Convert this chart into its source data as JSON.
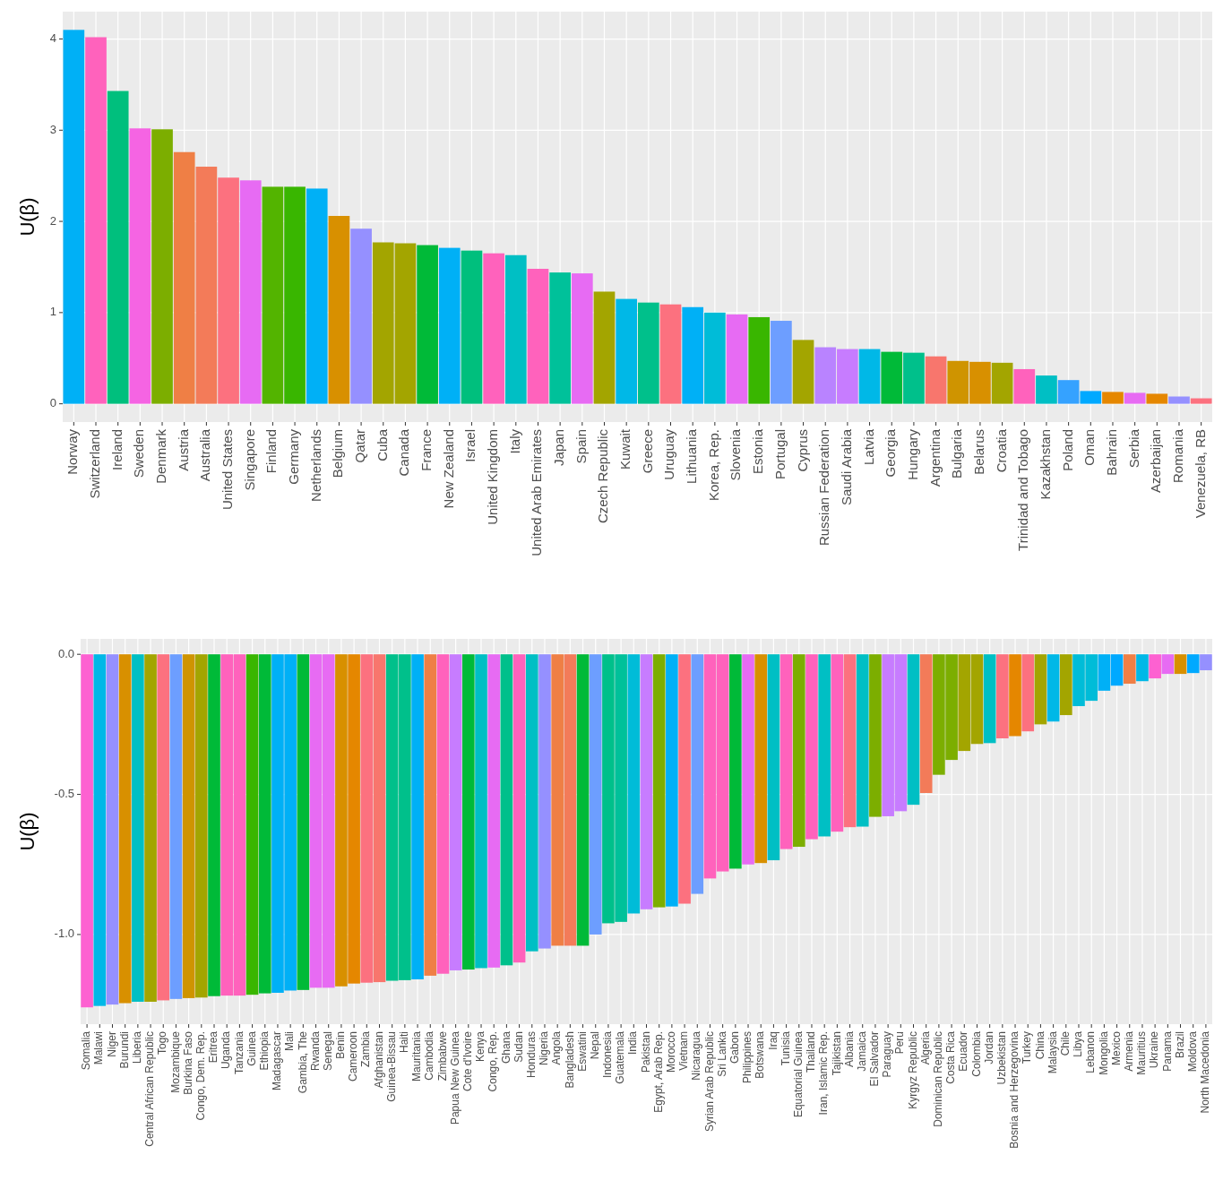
{
  "chart_data": [
    {
      "type": "bar",
      "ylabel": "U(β)",
      "categories": [
        "Norway",
        "Switzerland",
        "Ireland",
        "Sweden",
        "Denmark",
        "Austria",
        "Australia",
        "United States",
        "Singapore",
        "Finland",
        "Germany",
        "Netherlands",
        "Belgium",
        "Qatar",
        "Cuba",
        "Canada",
        "France",
        "New Zealand",
        "Israel",
        "United Kingdom",
        "Italy",
        "United Arab Emirates",
        "Japan",
        "Spain",
        "Czech Republic",
        "Kuwait",
        "Greece",
        "Uruguay",
        "Lithuania",
        "Korea, Rep.",
        "Slovenia",
        "Estonia",
        "Portugal",
        "Cyprus",
        "Russian Federation",
        "Saudi Arabia",
        "Latvia",
        "Georgia",
        "Hungary",
        "Argentina",
        "Bulgaria",
        "Belarus",
        "Croatia",
        "Trinidad and Tobago",
        "Kazakhstan",
        "Poland",
        "Oman",
        "Bahrain",
        "Serbia",
        "Azerbaijan",
        "Romania",
        "Venezuela, RB"
      ],
      "values": [
        4.1,
        4.02,
        3.43,
        3.02,
        3.01,
        2.76,
        2.6,
        2.48,
        2.45,
        2.38,
        2.38,
        2.36,
        2.06,
        1.92,
        1.77,
        1.76,
        1.74,
        1.71,
        1.68,
        1.65,
        1.63,
        1.48,
        1.44,
        1.43,
        1.23,
        1.15,
        1.11,
        1.09,
        1.06,
        1.0,
        0.98,
        0.95,
        0.91,
        0.7,
        0.62,
        0.6,
        0.6,
        0.57,
        0.56,
        0.52,
        0.47,
        0.46,
        0.45,
        0.38,
        0.31,
        0.26,
        0.14,
        0.13,
        0.12,
        0.11,
        0.08,
        0.06
      ],
      "colors": [
        "#00b0f6",
        "#ff62bc",
        "#00bf7d",
        "#f564e3",
        "#7cae00",
        "#ef7f45",
        "#f37b59",
        "#fc717f",
        "#e76bf3",
        "#53b400",
        "#39b600",
        "#00b0f6",
        "#d89000",
        "#9590ff",
        "#a3a500",
        "#a3a500",
        "#00ba38",
        "#00b0f6",
        "#00bf7d",
        "#ff62bc",
        "#00bfc4",
        "#ff62bc",
        "#00c19a",
        "#e76bf3",
        "#a3a500",
        "#00b8e7",
        "#00c08b",
        "#fc717f",
        "#00b0f6",
        "#00bcd8",
        "#e76bf3",
        "#39b600",
        "#6d9eff",
        "#a3a500",
        "#b983ff",
        "#c77cff",
        "#00b8e7",
        "#00ba38",
        "#00c08b",
        "#f8766d",
        "#cf9400",
        "#d89000",
        "#a3a500",
        "#ff62bc",
        "#00bfc4",
        "#35a2ff",
        "#00a9ff",
        "#e58700",
        "#e76bf3",
        "#e58700",
        "#9590ff",
        "#fc717f"
      ],
      "ylim": [
        -0.2,
        4.3
      ],
      "yticks": [
        0,
        1,
        2,
        3,
        4
      ],
      "grid": true
    },
    {
      "type": "bar",
      "ylabel": "U(β)",
      "categories": [
        "Somalia",
        "Malawi",
        "Niger",
        "Burundi",
        "Liberia",
        "Central African Republic",
        "Togo",
        "Mozambique",
        "Burkina Faso",
        "Congo, Dem. Rep.",
        "Eritrea",
        "Uganda",
        "Tanzania",
        "Guinea",
        "Ethiopia",
        "Madagascar",
        "Mali",
        "Gambia, The",
        "Rwanda",
        "Senegal",
        "Benin",
        "Cameroon",
        "Zambia",
        "Afghanistan",
        "Guinea-Bissau",
        "Haiti",
        "Mauritania",
        "Cambodia",
        "Zimbabwe",
        "Papua New Guinea",
        "Cote d'Ivoire",
        "Kenya",
        "Congo, Rep.",
        "Ghana",
        "Sudan",
        "Honduras",
        "Nigeria",
        "Angola",
        "Bangladesh",
        "Eswatini",
        "Nepal",
        "Indonesia",
        "Guatemala",
        "India",
        "Pakistan",
        "Egypt, Arab Rep.",
        "Morocco",
        "Vietnam",
        "Nicaragua",
        "Syrian Arab Republic",
        "Sri Lanka",
        "Gabon",
        "Philippines",
        "Botswana",
        "Iraq",
        "Tunisia",
        "Equatorial Guinea",
        "Thailand",
        "Iran, Islamic Rep.",
        "Tajikistan",
        "Albania",
        "Jamaica",
        "El Salvador",
        "Paraguay",
        "Peru",
        "Kyrgyz Republic",
        "Algeria",
        "Dominican Republic",
        "Costa Rica",
        "Ecuador",
        "Colombia",
        "Jordan",
        "Uzbekistan",
        "Bosnia and Herzegovina",
        "Turkey",
        "China",
        "Malaysia",
        "Chile",
        "Libya",
        "Lebanon",
        "Mongolia",
        "Mexico",
        "Armenia",
        "Mauritius",
        "Ukraine",
        "Panama",
        "Brazil",
        "Moldova",
        "North Macedonia"
      ],
      "values": [
        -1.26,
        -1.255,
        -1.25,
        -1.245,
        -1.24,
        -1.24,
        -1.235,
        -1.23,
        -1.227,
        -1.225,
        -1.22,
        -1.218,
        -1.218,
        -1.215,
        -1.21,
        -1.208,
        -1.2,
        -1.198,
        -1.19,
        -1.19,
        -1.185,
        -1.175,
        -1.172,
        -1.17,
        -1.165,
        -1.163,
        -1.16,
        -1.147,
        -1.14,
        -1.128,
        -1.125,
        -1.12,
        -1.118,
        -1.11,
        -1.1,
        -1.06,
        -1.05,
        -1.04,
        -1.04,
        -1.04,
        -1.0,
        -0.96,
        -0.955,
        -0.925,
        -0.91,
        -0.903,
        -0.9,
        -0.89,
        -0.855,
        -0.8,
        -0.775,
        -0.765,
        -0.75,
        -0.745,
        -0.735,
        -0.695,
        -0.687,
        -0.66,
        -0.65,
        -0.633,
        -0.617,
        -0.615,
        -0.58,
        -0.578,
        -0.56,
        -0.537,
        -0.495,
        -0.43,
        -0.377,
        -0.345,
        -0.32,
        -0.317,
        -0.3,
        -0.292,
        -0.275,
        -0.25,
        -0.24,
        -0.217,
        -0.185,
        -0.166,
        -0.13,
        -0.112,
        -0.105,
        -0.096,
        -0.086,
        -0.07,
        -0.07,
        -0.067,
        -0.057
      ],
      "colors": [
        "#fd61d1",
        "#00b8e7",
        "#9590ff",
        "#d89000",
        "#00bfc4",
        "#a3a500",
        "#fc717f",
        "#6d9eff",
        "#cf9400",
        "#a3a500",
        "#00ba38",
        "#ff62bc",
        "#ff62bc",
        "#39b600",
        "#00ba38",
        "#00b0f6",
        "#00b0f6",
        "#00ba38",
        "#e76bf3",
        "#e76bf3",
        "#d89000",
        "#e58700",
        "#fc717f",
        "#f8766d",
        "#00c08b",
        "#00c08b",
        "#00b0f6",
        "#ef7f45",
        "#ff62bc",
        "#c77cff",
        "#00ba38",
        "#00bfc4",
        "#e76bf3",
        "#00c08b",
        "#ff62bc",
        "#00bfc4",
        "#9590ff",
        "#ef7f45",
        "#f37b59",
        "#00ba38",
        "#6d9eff",
        "#00c08b",
        "#00c19a",
        "#00bcd8",
        "#c77cff",
        "#7cae00",
        "#00b0f6",
        "#fc717f",
        "#6d9eff",
        "#ff62bc",
        "#ff62bc",
        "#00ba38",
        "#e76bf3",
        "#d89000",
        "#00bfc4",
        "#ff62bc",
        "#7cae00",
        "#ff62bc",
        "#00bfc4",
        "#ff62bc",
        "#fc717f",
        "#00bfc4",
        "#7cae00",
        "#c77cff",
        "#c77cff",
        "#00bfc4",
        "#f37b59",
        "#7cae00",
        "#7cae00",
        "#a3a500",
        "#a3a500",
        "#00bfc4",
        "#fc717f",
        "#e58700",
        "#fc717f",
        "#a3a500",
        "#00b8e7",
        "#a3a500",
        "#00bcd8",
        "#00bcd8",
        "#00b0f6",
        "#00a9ff",
        "#ef7f45",
        "#00b8e7",
        "#fd61d1",
        "#e76bf3",
        "#d89000",
        "#00a9ff",
        "#9590ff"
      ],
      "ylim": [
        -1.32,
        0.055
      ],
      "yticks": [
        {
          "value": 0,
          "label": "0.0"
        },
        {
          "value": -0.5,
          "label": "-0.5"
        },
        {
          "value": -1,
          "label": "-1.0"
        }
      ],
      "grid": true
    }
  ]
}
